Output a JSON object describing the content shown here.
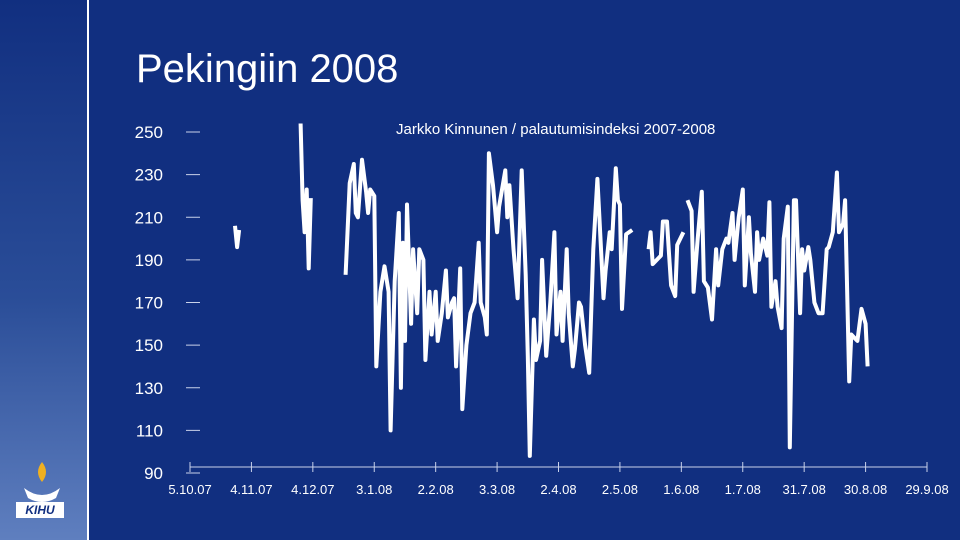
{
  "title": "Pekingiin 2008",
  "logo_text": "KIHU",
  "chart_data": {
    "type": "line",
    "title": "Jarkko Kinnunen / palautumisindeksi 2007-2008",
    "x": [
      "27.10.07",
      "28.10.07",
      "29.10.07",
      "14.11.07",
      "28.11.07",
      "29.11.07",
      "30.11.07",
      "1.12.07",
      "2.12.07",
      "3.12.07",
      "11.12.07",
      "20.12.07",
      "22.12.07",
      "24.12.07",
      "25.12.07",
      "26.12.07",
      "28.12.07",
      "30.12.07",
      "31.12.07",
      "1.1.08",
      "3.1.08",
      "4.1.08",
      "6.1.08",
      "8.1.08",
      "10.1.08",
      "11.1.08",
      "13.1.08",
      "15.1.08",
      "16.1.08",
      "17.1.08",
      "18.1.08",
      "19.1.08",
      "21.1.08",
      "22.1.08",
      "24.1.08",
      "25.1.08",
      "27.1.08",
      "28.1.08",
      "30.1.08",
      "31.1.08",
      "2.2.08",
      "3.2.08",
      "5.2.08",
      "7.2.08",
      "8.2.08",
      "10.2.08",
      "11.2.08",
      "12.2.08",
      "14.2.08",
      "15.2.08",
      "17.2.08",
      "19.2.08",
      "21.2.08",
      "23.2.08",
      "24.2.08",
      "26.2.08",
      "27.2.08",
      "28.2.08",
      "1.3.08",
      "3.3.08",
      "4.3.08",
      "7.3.08",
      "8.3.08",
      "9.3.08",
      "11.3.08",
      "13.3.08",
      "15.3.08",
      "17.3.08",
      "18.3.08",
      "19.3.08",
      "21.3.08",
      "22.3.08",
      "24.3.08",
      "25.3.08",
      "27.3.08",
      "29.3.08",
      "31.3.08",
      "1.4.08",
      "3.4.08",
      "4.4.08",
      "6.4.08",
      "7.4.08",
      "9.4.08",
      "10.4.08",
      "12.4.08",
      "13.4.08",
      "15.4.08",
      "17.4.08",
      "19.4.08",
      "21.4.08",
      "22.4.08",
      "24.4.08",
      "25.4.08",
      "27.4.08",
      "28.4.08",
      "30.4.08",
      "1.5.08",
      "2.5.08",
      "3.5.08",
      "5.5.08",
      "8.5.08",
      "12.5.08",
      "16.5.08",
      "17.5.08",
      "18.5.08",
      "20.5.08",
      "22.5.08",
      "23.5.08",
      "25.5.08",
      "26.5.08",
      "27.5.08",
      "29.5.08",
      "30.5.08",
      "2.6.08",
      "3.6.08",
      "4.6.08",
      "6.6.08",
      "7.6.08",
      "9.6.08",
      "11.6.08",
      "12.6.08",
      "14.6.08",
      "16.6.08",
      "18.6.08",
      "19.6.08",
      "21.6.08",
      "23.6.08",
      "24.6.08",
      "26.6.08",
      "27.6.08",
      "29.6.08",
      "1.7.08",
      "2.7.08",
      "4.7.08",
      "5.7.08",
      "7.7.08",
      "8.7.08",
      "9.7.08",
      "11.7.08",
      "13.7.08",
      "14.7.08",
      "15.7.08",
      "17.7.08",
      "18.7.08",
      "20.7.08",
      "21.7.08",
      "23.7.08",
      "24.7.08",
      "26.7.08",
      "27.7.08",
      "29.7.08",
      "30.7.08",
      "31.7.08",
      "2.8.08",
      "3.8.08",
      "5.8.08",
      "7.8.08",
      "9.8.08",
      "11.8.08",
      "12.8.08",
      "14.8.08",
      "16.8.08",
      "17.8.08",
      "19.8.08",
      "20.8.08",
      "22.8.08",
      "23.8.08",
      "25.8.08",
      "26.8.08",
      "28.8.08",
      "30.8.08",
      "31.8.08"
    ],
    "series": [
      {
        "color": "#ffffff",
        "values": [
          206,
          196,
          204,
          null,
          254,
          218,
          203,
          223,
          186,
          219,
          null,
          183,
          226,
          235,
          212,
          210,
          237,
          222,
          212,
          223,
          220,
          140,
          175,
          187,
          175,
          110,
          180,
          212,
          130,
          198,
          152,
          216,
          160,
          195,
          165,
          195,
          190,
          143,
          175,
          155,
          175,
          152,
          165,
          185,
          163,
          170,
          172,
          140,
          186,
          120,
          150,
          165,
          170,
          198,
          170,
          163,
          155,
          240,
          225,
          203,
          215,
          232,
          210,
          225,
          195,
          172,
          232,
          183,
          145,
          98,
          162,
          143,
          152,
          190,
          145,
          170,
          203,
          155,
          175,
          152,
          195,
          165,
          140,
          148,
          170,
          168,
          150,
          137,
          195,
          228,
          210,
          172,
          185,
          203,
          195,
          233,
          218,
          216,
          167,
          202,
          204,
          null,
          195,
          203,
          188,
          190,
          192,
          208,
          208,
          193,
          178,
          173,
          197,
          203,
          null,
          218,
          213,
          175,
          200,
          222,
          180,
          177,
          162,
          195,
          178,
          195,
          200,
          198,
          212,
          190,
          210,
          223,
          178,
          210,
          193,
          175,
          203,
          190,
          200,
          192,
          217,
          168,
          180,
          168,
          158,
          200,
          215,
          102,
          218,
          218,
          165,
          195,
          185,
          196,
          190,
          170,
          165,
          165,
          195,
          196,
          203,
          231,
          203,
          207,
          218,
          133,
          155,
          153,
          152,
          167,
          160,
          140
        ]
      }
    ],
    "xlim": [
      "5.10.07",
      "29.9.08"
    ],
    "xticks": [
      "5.10.07",
      "4.11.07",
      "4.12.07",
      "3.1.08",
      "2.2.08",
      "3.3.08",
      "2.4.08",
      "2.5.08",
      "1.6.08",
      "1.7.08",
      "31.7.08",
      "30.8.08",
      "29.9.08"
    ],
    "ylim": [
      90,
      250
    ],
    "yticks": [
      90,
      110,
      130,
      150,
      170,
      190,
      210,
      230,
      250
    ]
  }
}
